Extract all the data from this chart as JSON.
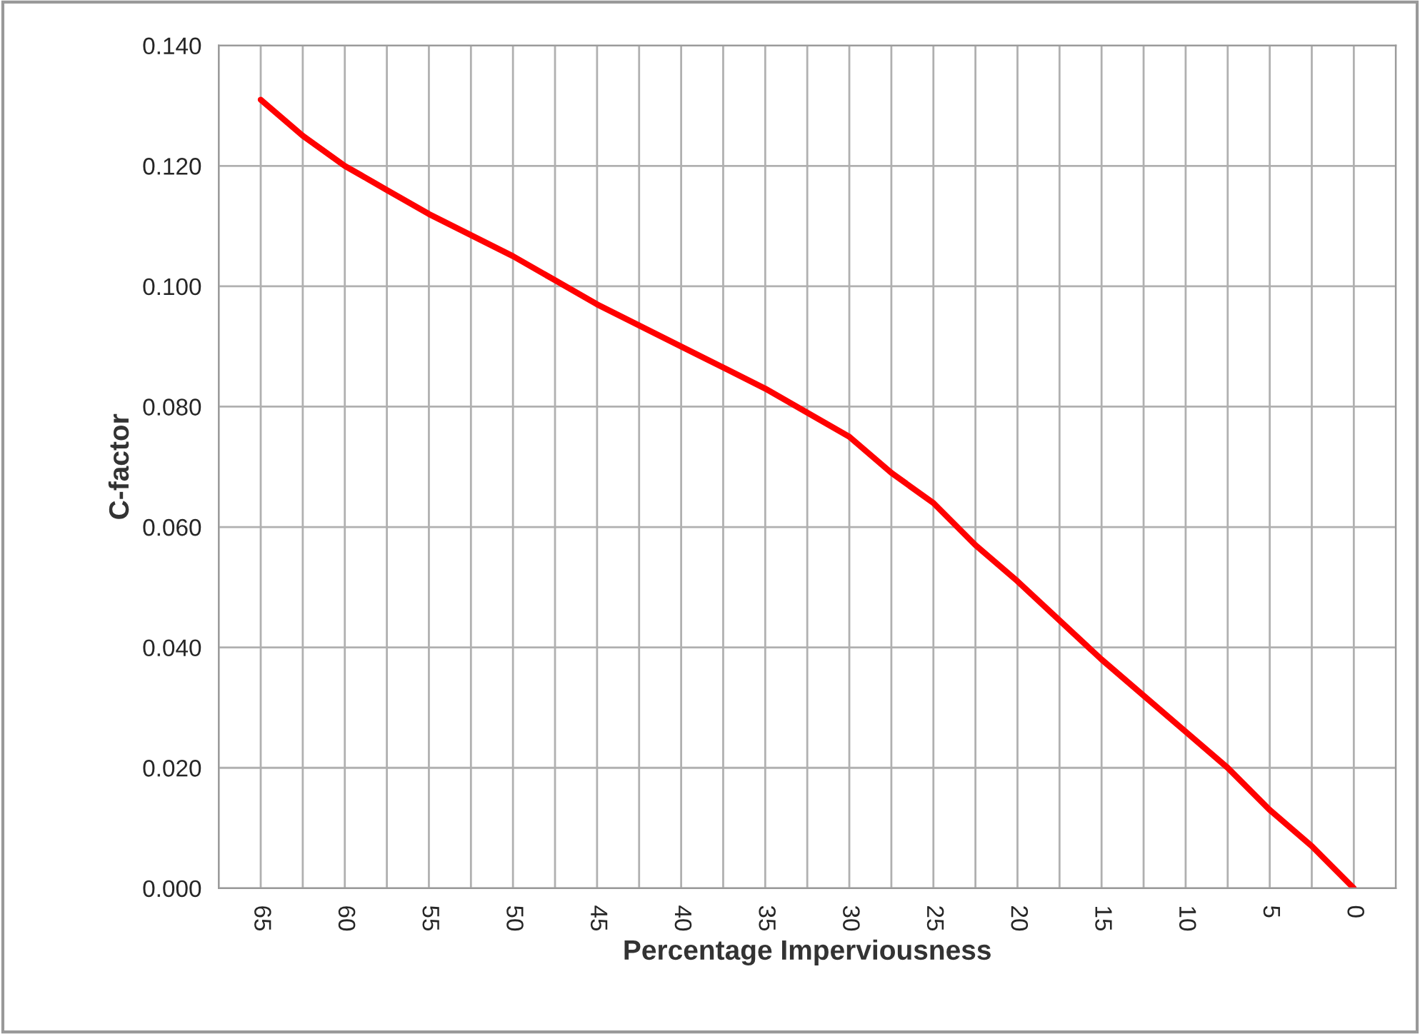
{
  "chart_data": {
    "type": "line",
    "xlabel": "Percentage Imperviousness",
    "ylabel": "C-factor",
    "x": [
      65,
      62.5,
      60,
      57.5,
      55,
      50,
      47.5,
      45,
      40,
      35,
      32.5,
      30,
      27.5,
      25,
      22.5,
      20,
      15,
      10,
      7.5,
      5,
      2.5,
      0
    ],
    "series": [
      {
        "color": "#ff0000",
        "values": [
          0.131,
          0.125,
          0.12,
          0.116,
          0.112,
          0.105,
          0.101,
          0.097,
          0.09,
          0.083,
          0.079,
          0.075,
          0.069,
          0.064,
          0.057,
          0.051,
          0.038,
          0.026,
          0.02,
          0.013,
          0.007,
          0.0
        ]
      }
    ],
    "xlim": [
      67.5,
      -2.5
    ],
    "xticks": [
      {
        "value": 67.5,
        "label": null
      },
      65,
      {
        "value": 62.5,
        "label": null
      },
      60,
      {
        "value": 57.5,
        "label": null
      },
      55,
      {
        "value": 52.5,
        "label": null
      },
      50,
      {
        "value": 47.5,
        "label": null
      },
      45,
      {
        "value": 42.5,
        "label": null
      },
      40,
      {
        "value": 37.5,
        "label": null
      },
      35,
      {
        "value": 32.5,
        "label": null
      },
      30,
      {
        "value": 27.5,
        "label": null
      },
      25,
      {
        "value": 22.5,
        "label": null
      },
      20,
      {
        "value": 17.5,
        "label": null
      },
      15,
      {
        "value": 12.5,
        "label": null
      },
      10,
      {
        "value": 7.5,
        "label": null
      },
      5,
      {
        "value": 2.5,
        "label": null
      },
      0,
      {
        "value": -2.5,
        "label": null
      }
    ],
    "ylim": [
      0,
      0.14
    ],
    "yticks": [
      {
        "value": 0,
        "label": "0.000"
      },
      {
        "value": 0.02,
        "label": "0.020"
      },
      {
        "value": 0.04,
        "label": "0.040"
      },
      {
        "value": 0.06,
        "label": "0.060"
      },
      {
        "value": 0.08,
        "label": "0.080"
      },
      {
        "value": 0.1,
        "label": "0.100"
      },
      {
        "value": 0.12,
        "label": "0.120"
      },
      {
        "value": 0.14,
        "label": "0.140"
      }
    ],
    "grid": true,
    "marker": "none",
    "line_style": "solid"
  }
}
